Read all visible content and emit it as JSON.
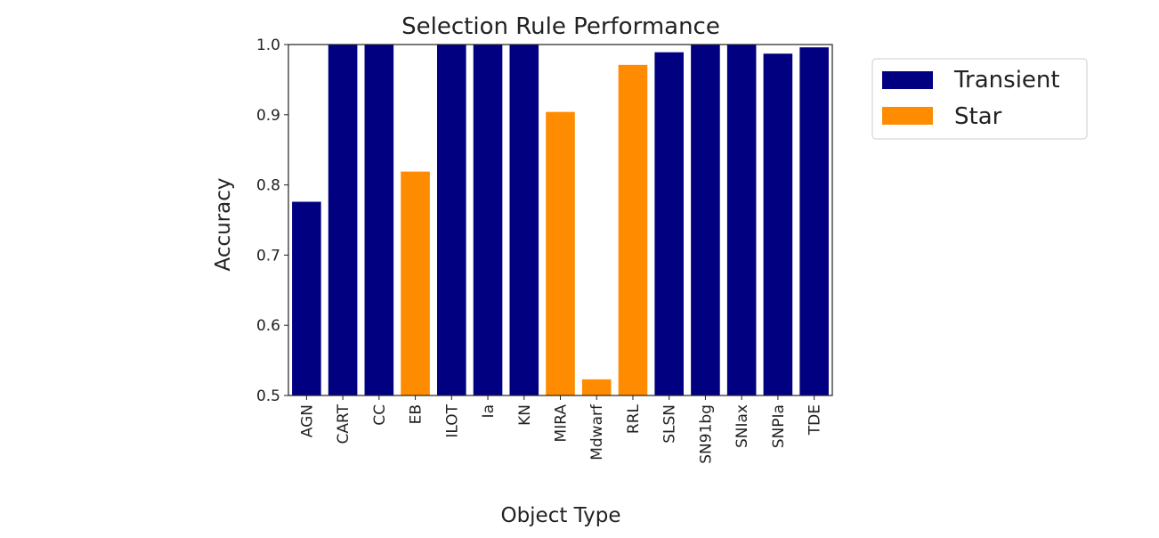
{
  "chart_data": {
    "type": "bar",
    "title": "Selection Rule Performance",
    "xlabel": "Object Type",
    "ylabel": "Accuracy",
    "ylim": [
      0.5,
      1.0
    ],
    "yticks": [
      "0.5",
      "0.6",
      "0.7",
      "0.8",
      "0.9",
      "1.0"
    ],
    "categories": [
      "AGN",
      "CART",
      "CC",
      "EB",
      "ILOT",
      "Ia",
      "KN",
      "MIRA",
      "Mdwarf",
      "RRL",
      "SLSN",
      "SN91bg",
      "SNIax",
      "SNPIa",
      "TDE"
    ],
    "values": [
      0.776,
      1.0,
      1.0,
      0.819,
      1.0,
      1.0,
      1.0,
      0.904,
      0.523,
      0.971,
      0.989,
      1.0,
      1.0,
      0.987,
      0.996
    ],
    "groups": [
      "Transient",
      "Transient",
      "Transient",
      "Star",
      "Transient",
      "Transient",
      "Transient",
      "Star",
      "Star",
      "Star",
      "Transient",
      "Transient",
      "Transient",
      "Transient",
      "Transient"
    ],
    "series": [
      {
        "name": "Transient",
        "color": "#000080"
      },
      {
        "name": "Star",
        "color": "#ff8c00"
      }
    ],
    "grid": false,
    "legend_position": "outside-right-top"
  }
}
